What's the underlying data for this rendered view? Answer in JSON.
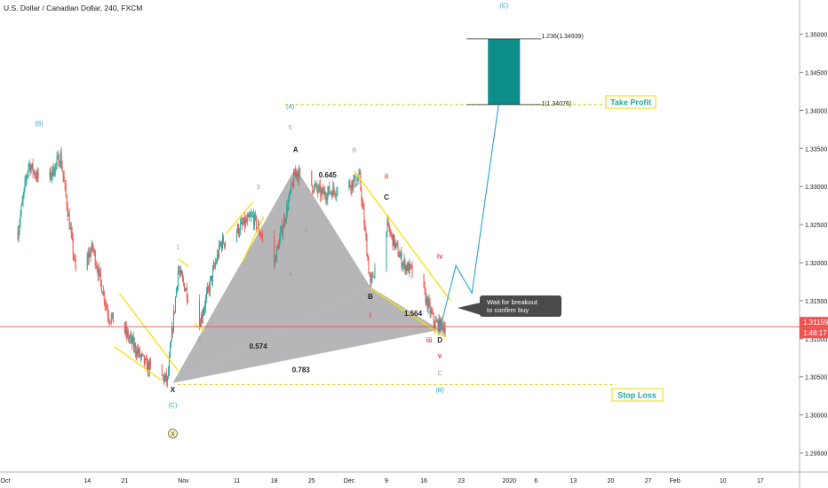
{
  "header": {
    "title": "U.S. Dollar / Canadian Dollar, 240, FXCM"
  },
  "price_axis": {
    "ticks": [
      "1.35000",
      "1.34500",
      "1.34000",
      "1.33500",
      "1.33000",
      "1.32500",
      "1.32000",
      "1.31500",
      "1.31000",
      "1.30500",
      "1.30000",
      "1.29500"
    ],
    "current_price": "1.31159",
    "countdown": "1:48:17"
  },
  "time_axis": {
    "labels": [
      "Oct",
      "14",
      "21",
      "Nov",
      "11",
      "18",
      "25",
      "Dec",
      "9",
      "16",
      "23",
      "2020",
      "6",
      "13",
      "20",
      "27",
      "Feb",
      "10",
      "17"
    ]
  },
  "colors": {
    "bull": "#26a69a",
    "bear": "#ef5350",
    "wave": "#26a69a",
    "yellow": "#f5e10a",
    "target_fill": "#0e8e8a",
    "harmonic_fill": "#7a7a80",
    "price_line": "#ef5350",
    "callout_bg": "#4a4a4a"
  },
  "annotations": {
    "take_profit": "Take Profit",
    "stop_loss": "Stop Loss",
    "callout_line1": "Wait for breakout",
    "callout_line2": "to confirm buy",
    "fib_top": "1.236(1.34939)",
    "fib_1": "1(1.34076)",
    "ratio_0645": "0.645",
    "ratio_0574": "0.574",
    "ratio_0783": "0.783",
    "ratio_1564": "1.564",
    "pt_X": "X",
    "pt_A": "A",
    "pt_B": "B",
    "pt_C": "C",
    "pt_D": "D",
    "wave_B_top": "B",
    "wave_C_low": "C",
    "w_1": "1",
    "w_2": "2",
    "w_3": "3",
    "w_4": "4",
    "w_5": "5",
    "w_i": "i",
    "w_ii": "ii",
    "w_iii": "iii",
    "w_iv": "iv",
    "w_v": "v",
    "w_B_paren": "(B)",
    "w_A_paren": "(A)",
    "w_C_paren": "(C)",
    "w_C_bottom": "(C)",
    "w_X_circle": "X",
    "w_B_bottom": "(B)",
    "w_A_small": "A"
  },
  "chart_data": {
    "type": "candlestick",
    "title": "U.S. Dollar / Canadian Dollar, 240, FXCM",
    "y_range": [
      1.2925,
      1.3545
    ],
    "x_range": [
      "2019-09-28",
      "2020-02-24"
    ],
    "price_path": [
      {
        "date": "2019-10-01",
        "price": 1.324
      },
      {
        "date": "2019-10-03",
        "price": 1.333
      },
      {
        "date": "2019-10-06",
        "price": 1.33
      },
      {
        "date": "2019-10-09",
        "price": 1.334
      },
      {
        "date": "2019-10-12",
        "price": 1.318
      },
      {
        "date": "2019-10-15",
        "price": 1.322
      },
      {
        "date": "2019-10-18",
        "price": 1.313
      },
      {
        "date": "2019-10-21",
        "price": 1.311
      },
      {
        "date": "2019-10-25",
        "price": 1.3065
      },
      {
        "date": "2019-10-29",
        "price": 1.3045
      },
      {
        "date": "2019-10-31",
        "price": 1.319
      },
      {
        "date": "2019-11-04",
        "price": 1.312
      },
      {
        "date": "2019-11-08",
        "price": 1.3225
      },
      {
        "date": "2019-11-14",
        "price": 1.326
      },
      {
        "date": "2019-11-18",
        "price": 1.32
      },
      {
        "date": "2019-11-22",
        "price": 1.332
      },
      {
        "date": "2019-11-27",
        "price": 1.329
      },
      {
        "date": "2019-12-01",
        "price": 1.33
      },
      {
        "date": "2019-12-04",
        "price": 1.331
      },
      {
        "date": "2019-12-06",
        "price": 1.317
      },
      {
        "date": "2019-12-09",
        "price": 1.325
      },
      {
        "date": "2019-12-12",
        "price": 1.32
      },
      {
        "date": "2019-12-15",
        "price": 1.318
      },
      {
        "date": "2019-12-18",
        "price": 1.312
      },
      {
        "date": "2019-12-20",
        "price": 1.3116
      }
    ],
    "levels": {
      "take_profit": 1.34076,
      "target": 1.34939,
      "stop_loss": 1.304,
      "current": 1.31159
    },
    "harmonic": {
      "X": {
        "date": "2019-10-30",
        "price": 1.3042
      },
      "A": {
        "date": "2019-11-22",
        "price": 1.3325
      },
      "B": {
        "date": "2019-12-06",
        "price": 1.3168
      },
      "C": {
        "date": "2019-12-09",
        "price": 1.3262
      },
      "D": {
        "date": "2019-12-19",
        "price": 1.3112
      }
    },
    "projection": [
      {
        "date": "2019-12-22",
        "price": 1.3196
      },
      {
        "date": "2019-12-25",
        "price": 1.316
      },
      {
        "date": "2019-12-30",
        "price": 1.34076
      }
    ]
  }
}
